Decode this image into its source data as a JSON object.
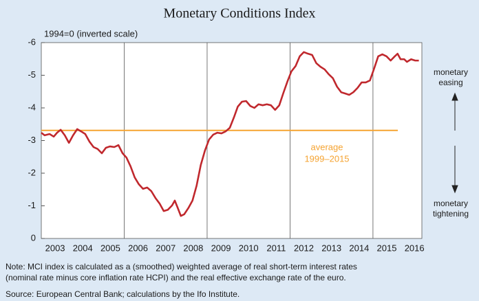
{
  "chart_data": {
    "type": "line",
    "title": "Monetary Conditions Index",
    "y_axis_label": "1994=0 (inverted scale)",
    "y_inverted": true,
    "ylim": [
      -6,
      0
    ],
    "yticks": [
      -6,
      -5,
      -4,
      -3,
      -2,
      -1,
      0
    ],
    "xlim": [
      2003,
      2016.77
    ],
    "xticks": [
      2003,
      2004,
      2005,
      2006,
      2007,
      2008,
      2009,
      2010,
      2011,
      2012,
      2013,
      2014,
      2015,
      2016
    ],
    "x_gridlines": [
      2006,
      2009,
      2012,
      2015
    ],
    "color": "#c0282d",
    "x": [
      2003.0,
      2003.12,
      2003.3,
      2003.45,
      2003.57,
      2003.7,
      2003.85,
      2004.0,
      2004.15,
      2004.3,
      2004.44,
      2004.59,
      2004.74,
      2004.89,
      2005.04,
      2005.19,
      2005.34,
      2005.49,
      2005.64,
      2005.79,
      2005.94,
      2006.08,
      2006.23,
      2006.38,
      2006.53,
      2006.68,
      2006.83,
      2006.98,
      2007.13,
      2007.28,
      2007.43,
      2007.58,
      2007.73,
      2007.83,
      2007.93,
      2008.05,
      2008.17,
      2008.32,
      2008.47,
      2008.62,
      2008.77,
      2008.92,
      2009.07,
      2009.22,
      2009.37,
      2009.52,
      2009.67,
      2009.82,
      2009.97,
      2010.11,
      2010.26,
      2010.41,
      2010.56,
      2010.71,
      2010.86,
      2011.01,
      2011.16,
      2011.31,
      2011.46,
      2011.61,
      2011.76,
      2011.91,
      2012.05,
      2012.2,
      2012.35,
      2012.5,
      2012.65,
      2012.8,
      2012.95,
      2013.1,
      2013.25,
      2013.4,
      2013.55,
      2013.7,
      2013.85,
      2014.0,
      2014.14,
      2014.29,
      2014.44,
      2014.59,
      2014.74,
      2014.89,
      2015.04,
      2015.19,
      2015.34,
      2015.49,
      2015.64,
      2015.79,
      2015.89,
      2016.0,
      2016.13,
      2016.23,
      2016.38,
      2016.53,
      2016.66
    ],
    "values": [
      -3.24,
      -3.16,
      -3.2,
      -3.12,
      -3.24,
      -3.33,
      -3.16,
      -2.93,
      -3.16,
      -3.35,
      -3.28,
      -3.2,
      -2.97,
      -2.8,
      -2.74,
      -2.61,
      -2.78,
      -2.82,
      -2.8,
      -2.86,
      -2.61,
      -2.48,
      -2.21,
      -1.87,
      -1.66,
      -1.52,
      -1.56,
      -1.45,
      -1.24,
      -1.07,
      -0.84,
      -0.88,
      -1.01,
      -1.16,
      -0.95,
      -0.69,
      -0.74,
      -0.93,
      -1.16,
      -1.62,
      -2.25,
      -2.69,
      -3.03,
      -3.18,
      -3.24,
      -3.22,
      -3.28,
      -3.39,
      -3.71,
      -4.04,
      -4.19,
      -4.21,
      -4.06,
      -4.0,
      -4.11,
      -4.08,
      -4.11,
      -4.08,
      -3.94,
      -4.08,
      -4.46,
      -4.82,
      -5.12,
      -5.28,
      -5.58,
      -5.71,
      -5.66,
      -5.62,
      -5.37,
      -5.26,
      -5.18,
      -5.03,
      -4.91,
      -4.65,
      -4.48,
      -4.44,
      -4.4,
      -4.48,
      -4.61,
      -4.78,
      -4.78,
      -4.84,
      -5.2,
      -5.58,
      -5.64,
      -5.58,
      -5.45,
      -5.58,
      -5.66,
      -5.49,
      -5.49,
      -5.41,
      -5.49,
      -5.45,
      -5.45
    ],
    "average": {
      "color": "#f5a331",
      "x": [
        2003,
        2015.9
      ],
      "values": [
        -3.31,
        -3.31
      ],
      "label": [
        "average",
        "1999–2015"
      ]
    },
    "annotations": {
      "easing": [
        "monetary",
        "easing"
      ],
      "tightening": [
        "monetary",
        "tightening"
      ]
    },
    "note": [
      "Note: MCI index is calculated as a (smoothed) weighted average of real short-term interest rates",
      "(nominal rate minus core inflation rate HCPI) and the real effective exchange rate of the euro."
    ],
    "source": "Source: European Central Bank; calculations by the Ifo Institute."
  }
}
